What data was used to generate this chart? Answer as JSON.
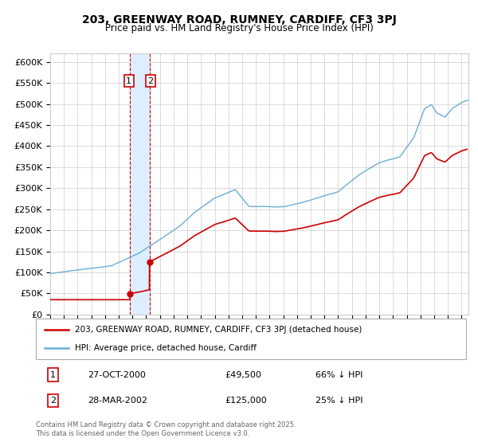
{
  "title": "203, GREENWAY ROAD, RUMNEY, CARDIFF, CF3 3PJ",
  "subtitle": "Price paid vs. HM Land Registry's House Price Index (HPI)",
  "ylabel_ticks": [
    "£0",
    "£50K",
    "£100K",
    "£150K",
    "£200K",
    "£250K",
    "£300K",
    "£350K",
    "£400K",
    "£450K",
    "£500K",
    "£550K",
    "£600K"
  ],
  "ytick_values": [
    0,
    50000,
    100000,
    150000,
    200000,
    250000,
    300000,
    350000,
    400000,
    450000,
    500000,
    550000,
    600000
  ],
  "sale1_date_num": 2000.82,
  "sale1_price": 49500,
  "sale1_label": "27-OCT-2000",
  "sale1_pct": "66% ↓ HPI",
  "sale2_date_num": 2002.24,
  "sale2_price": 125000,
  "sale2_label": "28-MAR-2002",
  "sale2_pct": "25% ↓ HPI",
  "hpi_color": "#6baed6",
  "price_color": "#cc0000",
  "vline_color": "#cc0000",
  "shade_color": "#ddeeff",
  "legend1": "203, GREENWAY ROAD, RUMNEY, CARDIFF, CF3 3PJ (detached house)",
  "legend2": "HPI: Average price, detached house, Cardiff",
  "footer": "Contains HM Land Registry data © Crown copyright and database right 2025.\nThis data is licensed under the Open Government Licence v3.0.",
  "xmin": 1995,
  "xmax": 2025.5,
  "ymin": 0,
  "ymax": 620000,
  "annot1_box": "1",
  "annot2_box": "2",
  "plot_bg": "#ffffff"
}
